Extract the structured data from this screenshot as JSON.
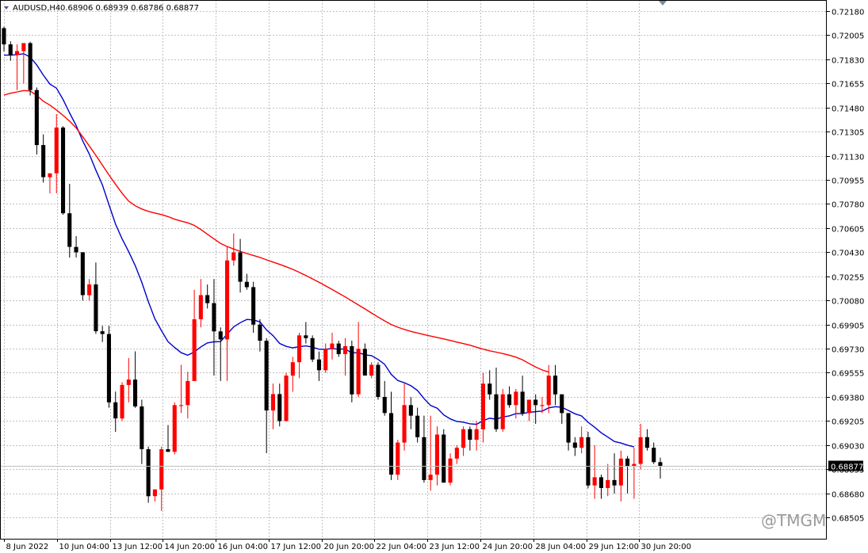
{
  "header": {
    "symbol_timeframe": "AUDUSD,H4",
    "ohlc": "0.68906 0.68939 0.68786 0.68877",
    "symbol_icon": "symbol-menu-icon"
  },
  "price_label": "0.68877",
  "watermark": "@TMGM",
  "colors": {
    "bull": "#ff0000",
    "bear": "#000000",
    "ma_fast": "#0000cd",
    "ma_slow": "#ff0000",
    "grid": "#c0c0c0",
    "price_tag_bg": "#000000"
  },
  "chart_data": {
    "type": "candlestick",
    "ylim": [
      0.6835,
      0.7226
    ],
    "y_ticks": [
      "0.72180",
      "0.72005",
      "0.71830",
      "0.71655",
      "0.71480",
      "0.71305",
      "0.71130",
      "0.70955",
      "0.70780",
      "0.70605",
      "0.70430",
      "0.70255",
      "0.70080",
      "0.69905",
      "0.69730",
      "0.69555",
      "0.69380",
      "0.69205",
      "0.69030",
      "0.68855",
      "0.68680",
      "0.68505"
    ],
    "x_labels": [
      "8 Jun 2022",
      "10 Jun 04:00",
      "13 Jun 12:00",
      "14 Jun 20:00",
      "16 Jun 04:00",
      "17 Jun 12:00",
      "20 Jun 20:00",
      "22 Jun 04:00",
      "23 Jun 12:00",
      "24 Jun 20:00",
      "28 Jun 04:00",
      "29 Jun 12:00",
      "30 Jun 20:00"
    ],
    "last_price": 0.68877,
    "candles": [
      {
        "o": 0.72056,
        "h": 0.72066,
        "l": 0.71887,
        "c": 0.71938
      },
      {
        "o": 0.71938,
        "h": 0.7196,
        "l": 0.71819,
        "c": 0.7186
      },
      {
        "o": 0.7186,
        "h": 0.71938,
        "l": 0.71606,
        "c": 0.71889
      },
      {
        "o": 0.71889,
        "h": 0.71947,
        "l": 0.71655,
        "c": 0.71947
      },
      {
        "o": 0.71947,
        "h": 0.71957,
        "l": 0.71567,
        "c": 0.71606
      },
      {
        "o": 0.71606,
        "h": 0.71625,
        "l": 0.71139,
        "c": 0.71207
      },
      {
        "o": 0.71207,
        "h": 0.71285,
        "l": 0.70935,
        "c": 0.70974
      },
      {
        "o": 0.70974,
        "h": 0.71002,
        "l": 0.70857,
        "c": 0.71002
      },
      {
        "o": 0.71002,
        "h": 0.71432,
        "l": 0.70857,
        "c": 0.71334
      },
      {
        "o": 0.71334,
        "h": 0.71344,
        "l": 0.70702,
        "c": 0.70712
      },
      {
        "o": 0.70712,
        "h": 0.70925,
        "l": 0.7039,
        "c": 0.70468
      },
      {
        "o": 0.70468,
        "h": 0.70546,
        "l": 0.70391,
        "c": 0.70429
      },
      {
        "o": 0.70429,
        "h": 0.70429,
        "l": 0.70079,
        "c": 0.70118
      },
      {
        "o": 0.70118,
        "h": 0.70235,
        "l": 0.70079,
        "c": 0.70196
      },
      {
        "o": 0.70196,
        "h": 0.70355,
        "l": 0.69837,
        "c": 0.69856
      },
      {
        "o": 0.69856,
        "h": 0.69895,
        "l": 0.69778,
        "c": 0.69836
      },
      {
        "o": 0.69836,
        "h": 0.69895,
        "l": 0.69301,
        "c": 0.6934
      },
      {
        "o": 0.6934,
        "h": 0.69418,
        "l": 0.69126,
        "c": 0.69223
      },
      {
        "o": 0.69223,
        "h": 0.69486,
        "l": 0.69204,
        "c": 0.69466
      },
      {
        "o": 0.69466,
        "h": 0.69661,
        "l": 0.6934,
        "c": 0.69505
      },
      {
        "o": 0.69505,
        "h": 0.6971,
        "l": 0.693,
        "c": 0.6931
      },
      {
        "o": 0.6931,
        "h": 0.69359,
        "l": 0.68892,
        "c": 0.69
      },
      {
        "o": 0.69,
        "h": 0.69019,
        "l": 0.68611,
        "c": 0.68659
      },
      {
        "o": 0.68659,
        "h": 0.68708,
        "l": 0.6862,
        "c": 0.68708
      },
      {
        "o": 0.68708,
        "h": 0.69019,
        "l": 0.68552,
        "c": 0.69
      },
      {
        "o": 0.69,
        "h": 0.69175,
        "l": 0.68981,
        "c": 0.68981
      },
      {
        "o": 0.68981,
        "h": 0.6934,
        "l": 0.68962,
        "c": 0.6932
      },
      {
        "o": 0.6932,
        "h": 0.69612,
        "l": 0.69262,
        "c": 0.6932
      },
      {
        "o": 0.6932,
        "h": 0.69563,
        "l": 0.69223,
        "c": 0.69495
      },
      {
        "o": 0.69495,
        "h": 0.70157,
        "l": 0.69495,
        "c": 0.69943
      },
      {
        "o": 0.69943,
        "h": 0.70235,
        "l": 0.69884,
        "c": 0.70118
      },
      {
        "o": 0.70118,
        "h": 0.70195,
        "l": 0.70021,
        "c": 0.7006
      },
      {
        "o": 0.7006,
        "h": 0.70235,
        "l": 0.69534,
        "c": 0.69855
      },
      {
        "o": 0.69855,
        "h": 0.69884,
        "l": 0.69495,
        "c": 0.69797
      },
      {
        "o": 0.69797,
        "h": 0.70467,
        "l": 0.69495,
        "c": 0.7037
      },
      {
        "o": 0.7037,
        "h": 0.70565,
        "l": 0.70332,
        "c": 0.70428
      },
      {
        "o": 0.70428,
        "h": 0.70526,
        "l": 0.70137,
        "c": 0.70215
      },
      {
        "o": 0.70215,
        "h": 0.70273,
        "l": 0.70157,
        "c": 0.70176
      },
      {
        "o": 0.70176,
        "h": 0.70215,
        "l": 0.69845,
        "c": 0.69904
      },
      {
        "o": 0.69904,
        "h": 0.69943,
        "l": 0.69709,
        "c": 0.69787
      },
      {
        "o": 0.69787,
        "h": 0.69806,
        "l": 0.68971,
        "c": 0.69281
      },
      {
        "o": 0.69281,
        "h": 0.69476,
        "l": 0.69145,
        "c": 0.694
      },
      {
        "o": 0.694,
        "h": 0.69476,
        "l": 0.69165,
        "c": 0.69204
      },
      {
        "o": 0.69204,
        "h": 0.69554,
        "l": 0.69204,
        "c": 0.69534
      },
      {
        "o": 0.69534,
        "h": 0.6967,
        "l": 0.69417,
        "c": 0.69631
      },
      {
        "o": 0.69631,
        "h": 0.69845,
        "l": 0.69515,
        "c": 0.69826
      },
      {
        "o": 0.69826,
        "h": 0.69923,
        "l": 0.69767,
        "c": 0.69806
      },
      {
        "o": 0.69806,
        "h": 0.69826,
        "l": 0.69632,
        "c": 0.69651
      },
      {
        "o": 0.69651,
        "h": 0.69709,
        "l": 0.69495,
        "c": 0.69573
      },
      {
        "o": 0.69573,
        "h": 0.69767,
        "l": 0.69554,
        "c": 0.69728
      },
      {
        "o": 0.69728,
        "h": 0.69845,
        "l": 0.69651,
        "c": 0.69767
      },
      {
        "o": 0.69767,
        "h": 0.69787,
        "l": 0.6967,
        "c": 0.6969
      },
      {
        "o": 0.6969,
        "h": 0.69806,
        "l": 0.69534,
        "c": 0.69748
      },
      {
        "o": 0.69748,
        "h": 0.69788,
        "l": 0.6934,
        "c": 0.69398
      },
      {
        "o": 0.69398,
        "h": 0.69923,
        "l": 0.69379,
        "c": 0.69728
      },
      {
        "o": 0.69728,
        "h": 0.69767,
        "l": 0.69534,
        "c": 0.69534
      },
      {
        "o": 0.69534,
        "h": 0.69631,
        "l": 0.69515,
        "c": 0.69612
      },
      {
        "o": 0.69612,
        "h": 0.69631,
        "l": 0.69359,
        "c": 0.69379
      },
      {
        "o": 0.69379,
        "h": 0.69495,
        "l": 0.69243,
        "c": 0.69262
      },
      {
        "o": 0.69262,
        "h": 0.69417,
        "l": 0.68776,
        "c": 0.68815
      },
      {
        "o": 0.68815,
        "h": 0.69068,
        "l": 0.68776,
        "c": 0.69048
      },
      {
        "o": 0.69048,
        "h": 0.69476,
        "l": 0.6899,
        "c": 0.6932
      },
      {
        "o": 0.6932,
        "h": 0.69378,
        "l": 0.69145,
        "c": 0.69243
      },
      {
        "o": 0.69243,
        "h": 0.69301,
        "l": 0.69048,
        "c": 0.69087
      },
      {
        "o": 0.69087,
        "h": 0.69243,
        "l": 0.68757,
        "c": 0.68776
      },
      {
        "o": 0.68776,
        "h": 0.69243,
        "l": 0.68698,
        "c": 0.68815
      },
      {
        "o": 0.68815,
        "h": 0.69165,
        "l": 0.68737,
        "c": 0.69106
      },
      {
        "o": 0.69106,
        "h": 0.69145,
        "l": 0.68757,
        "c": 0.68757
      },
      {
        "o": 0.68757,
        "h": 0.6897,
        "l": 0.68737,
        "c": 0.68932
      },
      {
        "o": 0.68932,
        "h": 0.69029,
        "l": 0.68893,
        "c": 0.6901
      },
      {
        "o": 0.6901,
        "h": 0.69165,
        "l": 0.68951,
        "c": 0.69145
      },
      {
        "o": 0.69145,
        "h": 0.69165,
        "l": 0.6899,
        "c": 0.69068
      },
      {
        "o": 0.69068,
        "h": 0.69204,
        "l": 0.6899,
        "c": 0.69145
      },
      {
        "o": 0.69145,
        "h": 0.69554,
        "l": 0.69048,
        "c": 0.69476
      },
      {
        "o": 0.69476,
        "h": 0.69573,
        "l": 0.69359,
        "c": 0.69398
      },
      {
        "o": 0.69398,
        "h": 0.69592,
        "l": 0.69126,
        "c": 0.69145
      },
      {
        "o": 0.69145,
        "h": 0.69437,
        "l": 0.69126,
        "c": 0.69398
      },
      {
        "o": 0.69398,
        "h": 0.69456,
        "l": 0.69301,
        "c": 0.6932
      },
      {
        "o": 0.6932,
        "h": 0.69437,
        "l": 0.69223,
        "c": 0.69417
      },
      {
        "o": 0.69417,
        "h": 0.69534,
        "l": 0.69242,
        "c": 0.69262
      },
      {
        "o": 0.69262,
        "h": 0.69359,
        "l": 0.69204,
        "c": 0.69359
      },
      {
        "o": 0.69359,
        "h": 0.69398,
        "l": 0.69184,
        "c": 0.6932
      },
      {
        "o": 0.6932,
        "h": 0.69378,
        "l": 0.69262,
        "c": 0.6932
      },
      {
        "o": 0.6932,
        "h": 0.69611,
        "l": 0.69262,
        "c": 0.69534
      },
      {
        "o": 0.69534,
        "h": 0.69611,
        "l": 0.6932,
        "c": 0.69398
      },
      {
        "o": 0.69398,
        "h": 0.69398,
        "l": 0.69184,
        "c": 0.69262
      },
      {
        "o": 0.69262,
        "h": 0.69262,
        "l": 0.6899,
        "c": 0.69048
      },
      {
        "o": 0.69048,
        "h": 0.69087,
        "l": 0.68951,
        "c": 0.6901
      },
      {
        "o": 0.6901,
        "h": 0.69165,
        "l": 0.68971,
        "c": 0.69087
      },
      {
        "o": 0.69087,
        "h": 0.69126,
        "l": 0.68716,
        "c": 0.68737
      },
      {
        "o": 0.68737,
        "h": 0.69029,
        "l": 0.6864,
        "c": 0.68796
      },
      {
        "o": 0.68796,
        "h": 0.68815,
        "l": 0.6864,
        "c": 0.68718
      },
      {
        "o": 0.68718,
        "h": 0.68893,
        "l": 0.68659,
        "c": 0.68776
      },
      {
        "o": 0.68776,
        "h": 0.6897,
        "l": 0.68678,
        "c": 0.68737
      },
      {
        "o": 0.68737,
        "h": 0.6899,
        "l": 0.6862,
        "c": 0.68932
      },
      {
        "o": 0.68932,
        "h": 0.68951,
        "l": 0.68679,
        "c": 0.68874
      },
      {
        "o": 0.68874,
        "h": 0.6901,
        "l": 0.6864,
        "c": 0.68893
      },
      {
        "o": 0.68893,
        "h": 0.69184,
        "l": 0.68854,
        "c": 0.69087
      },
      {
        "o": 0.69087,
        "h": 0.69145,
        "l": 0.6899,
        "c": 0.6901
      },
      {
        "o": 0.6901,
        "h": 0.69048,
        "l": 0.68893,
        "c": 0.68906
      },
      {
        "o": 0.68906,
        "h": 0.68939,
        "l": 0.68786,
        "c": 0.68877
      }
    ],
    "ma_slow": [
      0.7157,
      0.71583,
      0.71593,
      0.71603,
      0.716,
      0.71567,
      0.71525,
      0.71497,
      0.71462,
      0.71423,
      0.71381,
      0.71332,
      0.71267,
      0.71201,
      0.71133,
      0.71061,
      0.7099,
      0.70922,
      0.70858,
      0.708,
      0.70767,
      0.70743,
      0.70726,
      0.70714,
      0.70703,
      0.70688,
      0.70669,
      0.70655,
      0.70643,
      0.70624,
      0.70594,
      0.7056,
      0.70526,
      0.70493,
      0.70471,
      0.70453,
      0.70435,
      0.7042,
      0.70406,
      0.70392,
      0.70374,
      0.70358,
      0.70341,
      0.70324,
      0.70305,
      0.70283,
      0.7026,
      0.70236,
      0.70212,
      0.70186,
      0.70159,
      0.70132,
      0.70105,
      0.70076,
      0.70047,
      0.70018,
      0.69988,
      0.69959,
      0.69931,
      0.69905,
      0.69885,
      0.69869,
      0.69855,
      0.69843,
      0.69832,
      0.69821,
      0.69811,
      0.698,
      0.69789,
      0.69777,
      0.69766,
      0.69755,
      0.6974,
      0.69726,
      0.69714,
      0.69704,
      0.69694,
      0.69682,
      0.69668,
      0.69649,
      0.69622,
      0.69596,
      0.69575,
      0.6956
    ]
  }
}
